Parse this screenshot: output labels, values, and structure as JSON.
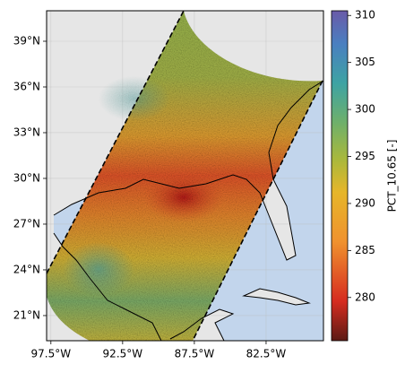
{
  "chart_data": {
    "type": "map",
    "xlim": [
      -97.8,
      -78.5
    ],
    "ylim": [
      19.35,
      41
    ],
    "xticks": [
      {
        "value": -97.5,
        "label": "97.5°W"
      },
      {
        "value": -92.5,
        "label": "92.5°W"
      },
      {
        "value": -87.5,
        "label": "87.5°W"
      },
      {
        "value": -82.5,
        "label": "82.5°W"
      }
    ],
    "yticks": [
      {
        "value": 21,
        "label": "21°N"
      },
      {
        "value": 24,
        "label": "24°N"
      },
      {
        "value": 27,
        "label": "27°N"
      },
      {
        "value": 30,
        "label": "30°N"
      },
      {
        "value": 33,
        "label": "33°N"
      },
      {
        "value": 36,
        "label": "36°N"
      },
      {
        "value": 39,
        "label": "39°N"
      }
    ],
    "grid": true,
    "colorbar": {
      "label": "PCT_10.65 [-]",
      "lim": [
        275.4,
        310.5
      ],
      "ticks": [
        280,
        285,
        290,
        295,
        300,
        305,
        310
      ]
    }
  }
}
